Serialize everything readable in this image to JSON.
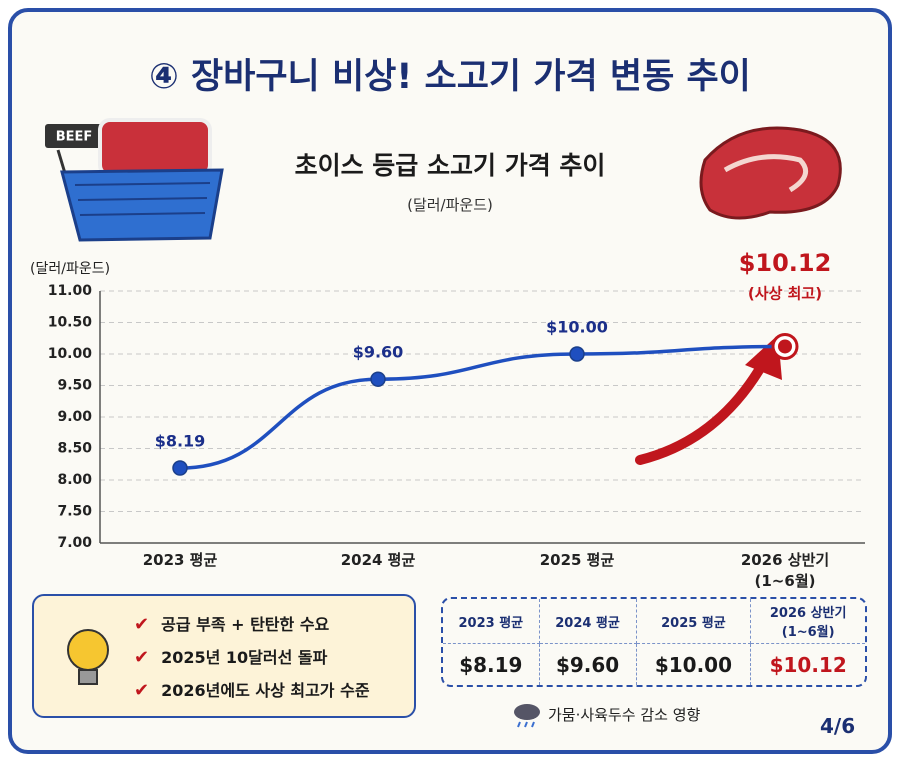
{
  "header": {
    "title": "④ 장바구니 비상! 소고기 가격 변동 추이"
  },
  "chart_data": {
    "type": "line",
    "title": "초이스 등급 소고기 가격 추이",
    "subtitle": "(달러/파운드)",
    "y_label": "(달러/파운드)",
    "categories": [
      "2023 평균",
      "2024 평균",
      "2025 평균",
      "2026 상반기\n(1~6월)"
    ],
    "values": [
      8.19,
      9.6,
      10.0,
      10.12
    ],
    "value_labels": [
      "$8.19",
      "$9.60",
      "$10.00",
      "$10.12"
    ],
    "annotation": "(사상 최고)",
    "color": "#1f4fbf",
    "highlight_color": "#c0161d",
    "ylim": [
      7,
      11
    ],
    "yticks": [
      {
        "value": 7,
        "label": "7.00"
      },
      {
        "value": 7.5,
        "label": "7.50"
      },
      {
        "value": 8,
        "label": "8.00"
      },
      {
        "value": 8.5,
        "label": "8.50"
      },
      {
        "value": 9,
        "label": "9.00"
      },
      {
        "value": 9.5,
        "label": "9.50"
      },
      {
        "value": 10,
        "label": "10.00"
      },
      {
        "value": 10.5,
        "label": "10.50"
      },
      {
        "value": 11,
        "label": "11.00"
      }
    ],
    "grid": true
  },
  "tips": [
    "공급 부족 + 탄탄한 수요",
    "2025년 10달러선 돌파",
    "2026년에도 사상 최고가 수준"
  ],
  "table": {
    "columns": [
      "2023 평균",
      "2024 평균",
      "2025 평균",
      "2026 상반기\n(1~6월)"
    ],
    "rows": [
      [
        "$8.19",
        "$9.60",
        "$10.00",
        "$10.12"
      ]
    ]
  },
  "note": "가뭄·사육두수 감소 영향",
  "page": "4/6"
}
